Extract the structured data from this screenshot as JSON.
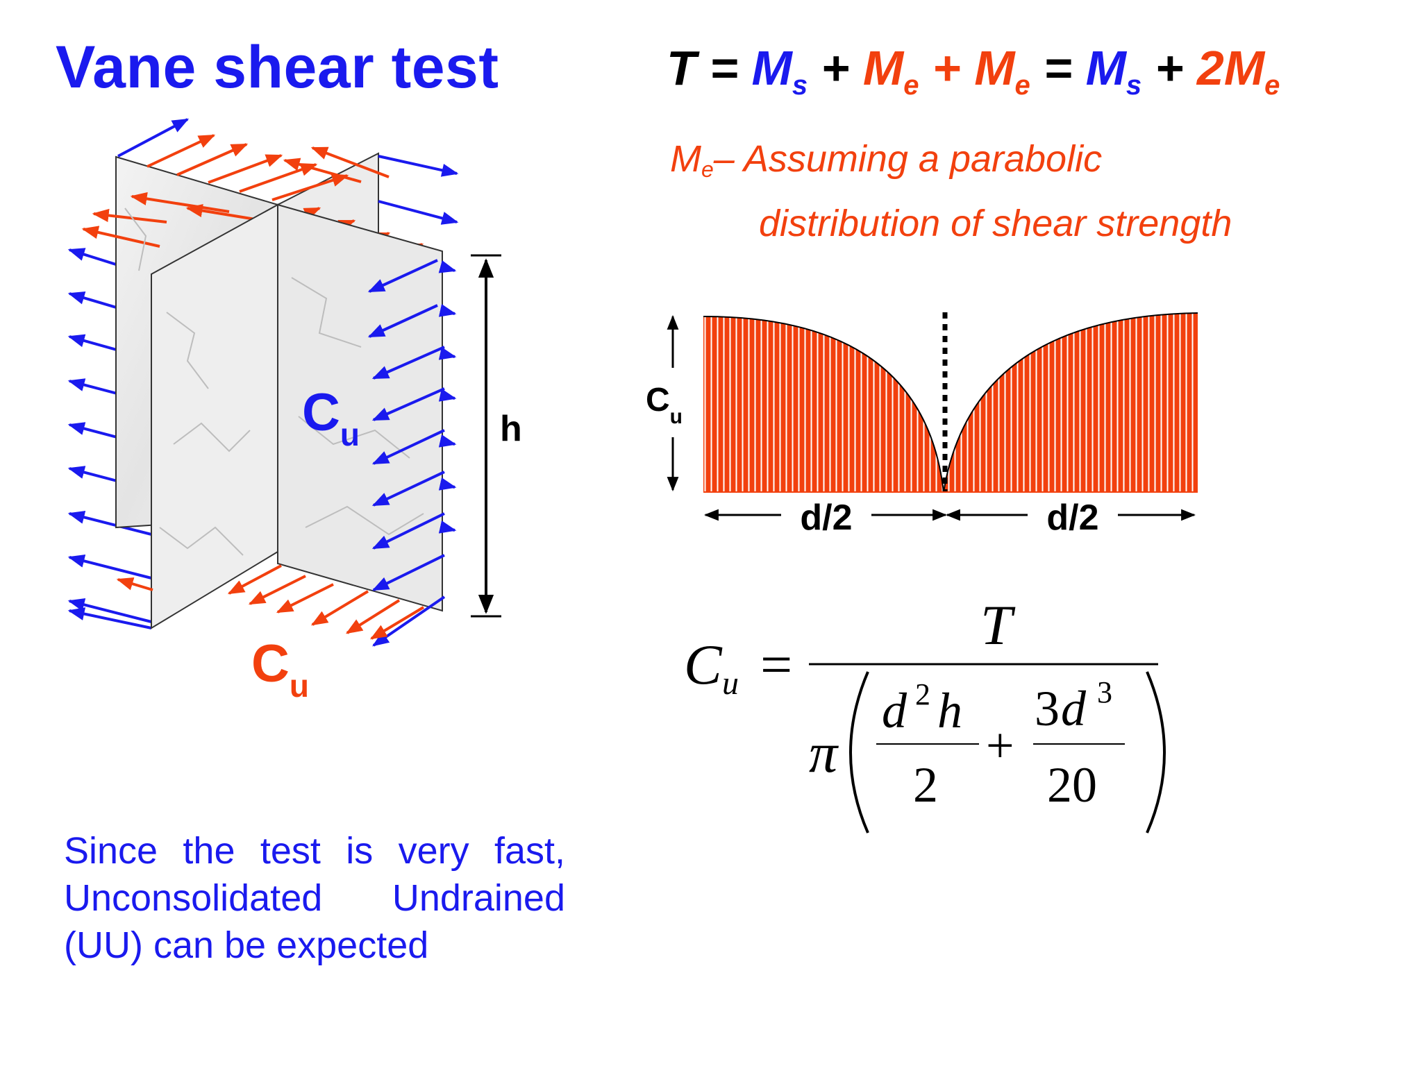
{
  "title": "Vane shear test",
  "equation": {
    "T": "T",
    "eq1": " = ",
    "Ms": "M",
    "s": "s",
    "plus1": " + ",
    "Me1": "M",
    "e1": "e",
    "plus2": " + ",
    "Me2": "M",
    "e2": "e",
    "eq2": " = ",
    "Ms2": "M",
    "s2": "s",
    "plus3": " + ",
    "twoMe": "2M",
    "e3": "e"
  },
  "note": {
    "M": "M",
    "e": "e",
    "line1": "– Assuming a parabolic",
    "line2": "distribution of shear strength"
  },
  "vane_labels": {
    "cu_center_C": "C",
    "cu_center_u": "u",
    "h": "h",
    "cu_bottom_C": "C",
    "cu_bottom_u": "u"
  },
  "distribution_labels": {
    "cu_C": "C",
    "cu_u": "u",
    "left_width": "d/2",
    "right_width": "d/2"
  },
  "formula": {
    "C": "C",
    "u": "u",
    "equals": "=",
    "numerator": "T",
    "pi": "π",
    "d2h_d": "d",
    "d2h_exp": "2",
    "d2h_h": "h",
    "den1": "2",
    "plus": "+",
    "t2_coef": "3",
    "t2_d": "d",
    "t2_exp": "3",
    "den2": "20"
  },
  "bottom_text": "Since the test is very fast, Unconsolidated Undrained (UU) can be expected",
  "colors": {
    "blue": "#1a1aee",
    "red": "#f2400e",
    "black": "#000000"
  }
}
